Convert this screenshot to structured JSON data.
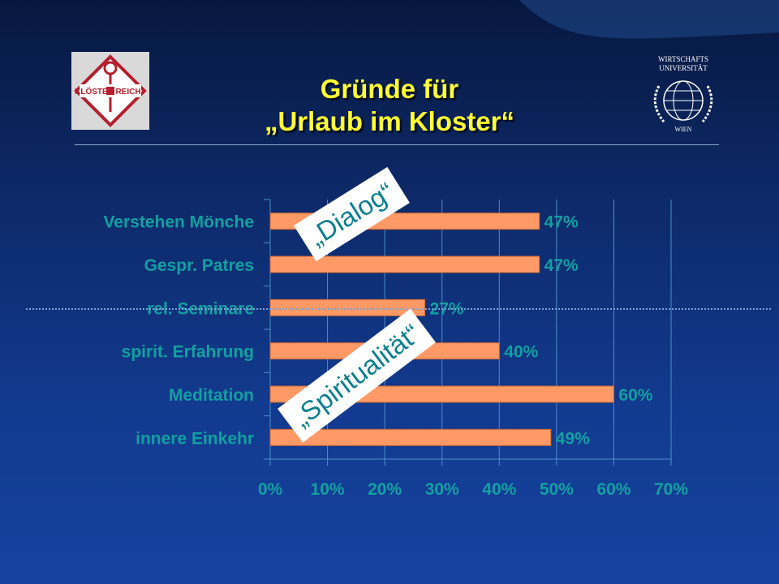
{
  "slide": {
    "title_line1": "Gründe für",
    "title_line2": "„Urlaub im Kloster“",
    "callout_dialog": "„Dialog“",
    "callout_spirit": "„Spiritualität“",
    "logo_left_icon": "kloster-reich-logo",
    "logo_right_icon": "wu-wien-seal",
    "logo_right_text_1": "WIRTSCHAFTS",
    "logo_right_text_2": "UNIVERSITÄT",
    "logo_right_text_3": "WIEN"
  },
  "colors": {
    "bar": "#ff9966",
    "bar_border": "#cc6633",
    "label": "#12a0a0",
    "grid": "#4c8fc7",
    "title": "#ffff33"
  },
  "chart_data": {
    "type": "bar",
    "orientation": "horizontal",
    "categories": [
      "Verstehen Mönche",
      "Gespr. Patres",
      "rel. Seminare",
      "spirit. Erfahrung",
      "Meditation",
      "innere Einkehr"
    ],
    "values": [
      47,
      47,
      27,
      40,
      60,
      49
    ],
    "data_labels": [
      "47%",
      "47%",
      "27%",
      "40%",
      "60%",
      "49%"
    ],
    "x_ticks": [
      "0%",
      "10%",
      "20%",
      "30%",
      "40%",
      "50%",
      "60%",
      "70%"
    ],
    "xlim": [
      0,
      70
    ],
    "grid": true
  }
}
